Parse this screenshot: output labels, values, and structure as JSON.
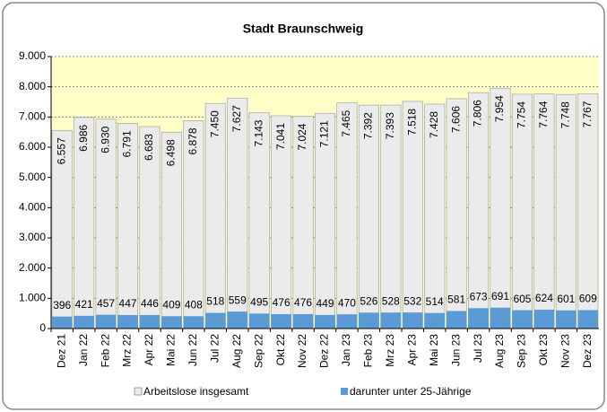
{
  "chart_data": {
    "type": "bar",
    "title": "Stadt Braunschweig",
    "categories": [
      "Dez 21",
      "Jan 22",
      "Feb 22",
      "Mrz 22",
      "Apr 22",
      "Mai 22",
      "Jun 22",
      "Jul 22",
      "Aug 22",
      "Sep 22",
      "Okt 22",
      "Nov 22",
      "Dez 22",
      "Jan 23",
      "Feb 23",
      "Mrz 23",
      "Apr 23",
      "Mai 23",
      "Jun 23",
      "Jul 23",
      "Aug 23",
      "Sep 23",
      "Okt 23",
      "Nov 23",
      "Dez 23"
    ],
    "series": [
      {
        "name": "Arbeitslose insgesamt",
        "color": "#ebebeb",
        "values": [
          6557,
          6986,
          6930,
          6791,
          6683,
          6498,
          6878,
          7450,
          7627,
          7143,
          7041,
          7024,
          7121,
          7465,
          7392,
          7393,
          7518,
          7428,
          7606,
          7806,
          7954,
          7754,
          7764,
          7748,
          7767
        ],
        "value_labels": [
          "6.557",
          "6.986",
          "6.930",
          "6.791",
          "6.683",
          "6.498",
          "6.878",
          "7.450",
          "7.627",
          "7.143",
          "7.041",
          "7.024",
          "7.121",
          "7.465",
          "7.392",
          "7.393",
          "7.518",
          "7.428",
          "7.606",
          "7.806",
          "7.954",
          "7.754",
          "7.764",
          "7.748",
          "7.767"
        ]
      },
      {
        "name": "darunter unter 25-Jährige",
        "color": "#5b9bd5",
        "values": [
          396,
          421,
          457,
          447,
          446,
          409,
          408,
          518,
          559,
          495,
          476,
          476,
          449,
          470,
          526,
          528,
          532,
          514,
          581,
          673,
          691,
          605,
          624,
          601,
          609
        ]
      }
    ],
    "ylim": [
      0,
      9000
    ],
    "yticks": [
      0,
      {
        "value": 1000,
        "label": "1.000"
      },
      {
        "value": 2000,
        "label": "2.000"
      },
      {
        "value": 3000,
        "label": "3.000"
      },
      {
        "value": 4000,
        "label": "4.000"
      },
      {
        "value": 5000,
        "label": "5.000"
      },
      {
        "value": 6000,
        "label": "6.000"
      },
      {
        "value": 7000,
        "label": "7.000"
      },
      {
        "value": 8000,
        "label": "8.000"
      },
      {
        "value": 9000,
        "label": "9.000"
      }
    ],
    "grid": true
  }
}
